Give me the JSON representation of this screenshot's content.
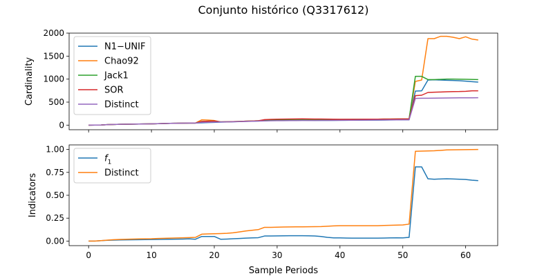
{
  "figure": {
    "title": "Conjunto histórico (Q3317612)",
    "xlabel": "Sample Periods"
  },
  "chart_data": [
    {
      "type": "line",
      "ylabel": "Cardinality",
      "xlim": [
        -3.1,
        65.1
      ],
      "ylim": [
        -100,
        2000
      ],
      "xticks": [
        0,
        10,
        20,
        30,
        40,
        50,
        60
      ],
      "yticks": [
        0,
        500,
        1000,
        1500,
        2000
      ],
      "legend_position": "upper left",
      "x": [
        0,
        1,
        2,
        3,
        4,
        5,
        6,
        7,
        8,
        9,
        10,
        11,
        12,
        13,
        14,
        15,
        16,
        17,
        18,
        19,
        20,
        21,
        22,
        23,
        24,
        25,
        26,
        27,
        28,
        29,
        30,
        31,
        32,
        33,
        34,
        35,
        36,
        37,
        38,
        39,
        40,
        41,
        42,
        43,
        44,
        45,
        46,
        47,
        48,
        49,
        50,
        51,
        52,
        53,
        54,
        55,
        56,
        57,
        58,
        59,
        60,
        61,
        62
      ],
      "series": [
        {
          "name": "N1−UNIF",
          "color": "#1f77b4",
          "values": [
            0,
            2,
            4,
            10,
            15,
            18,
            20,
            22,
            24,
            26,
            28,
            32,
            35,
            38,
            40,
            42,
            45,
            45,
            50,
            55,
            60,
            65,
            68,
            72,
            78,
            82,
            86,
            90,
            95,
            100,
            100,
            102,
            104,
            105,
            106,
            104,
            103,
            102,
            102,
            103,
            104,
            105,
            106,
            107,
            108,
            108,
            109,
            110,
            112,
            114,
            115,
            116,
            740,
            745,
            980,
            985,
            980,
            975,
            970,
            965,
            955,
            945,
            935
          ]
        },
        {
          "name": "Chao92",
          "color": "#ff7f0e",
          "values": [
            0,
            2,
            4,
            10,
            15,
            18,
            20,
            22,
            24,
            26,
            28,
            32,
            35,
            38,
            40,
            42,
            45,
            45,
            115,
            110,
            100,
            70,
            72,
            76,
            80,
            86,
            90,
            95,
            100,
            110,
            115,
            118,
            122,
            125,
            126,
            124,
            123,
            122,
            122,
            123,
            124,
            125,
            126,
            127,
            128,
            128,
            129,
            130,
            131,
            133,
            134,
            135,
            950,
            980,
            1880,
            1880,
            1930,
            1930,
            1910,
            1880,
            1920,
            1870,
            1850
          ]
        },
        {
          "name": "Jack1",
          "color": "#2ca02c",
          "values": [
            0,
            2,
            4,
            10,
            15,
            18,
            20,
            22,
            24,
            26,
            28,
            32,
            35,
            38,
            40,
            42,
            45,
            45,
            80,
            85,
            90,
            70,
            72,
            76,
            80,
            86,
            90,
            95,
            100,
            110,
            115,
            118,
            122,
            125,
            126,
            124,
            123,
            122,
            122,
            123,
            124,
            125,
            126,
            127,
            128,
            128,
            129,
            130,
            131,
            133,
            134,
            135,
            1060,
            1060,
            990,
            990,
            995,
            1000,
            1000,
            998,
            996,
            994,
            990
          ]
        },
        {
          "name": "SOR",
          "color": "#d62728",
          "values": [
            0,
            2,
            4,
            10,
            15,
            18,
            20,
            22,
            24,
            26,
            28,
            32,
            35,
            38,
            40,
            42,
            45,
            45,
            80,
            85,
            90,
            70,
            72,
            76,
            80,
            86,
            90,
            95,
            120,
            125,
            128,
            130,
            132,
            135,
            136,
            134,
            133,
            132,
            130,
            128,
            127,
            126,
            126,
            127,
            128,
            128,
            129,
            130,
            131,
            133,
            134,
            135,
            640,
            650,
            710,
            715,
            720,
            725,
            728,
            730,
            735,
            745,
            745
          ]
        },
        {
          "name": "Distinct",
          "color": "#9467bd",
          "values": [
            0,
            2,
            4,
            10,
            15,
            18,
            20,
            22,
            24,
            26,
            28,
            32,
            35,
            38,
            40,
            42,
            45,
            45,
            60,
            62,
            65,
            68,
            70,
            72,
            76,
            80,
            84,
            88,
            92,
            95,
            96,
            97,
            98,
            99,
            100,
            100,
            101,
            102,
            103,
            104,
            105,
            106,
            107,
            108,
            109,
            110,
            111,
            112,
            113,
            114,
            115,
            116,
            580,
            585,
            585,
            587,
            588,
            590,
            592,
            593,
            594,
            594,
            595
          ]
        }
      ]
    },
    {
      "type": "line",
      "ylabel": "Indicators",
      "xlim": [
        -3.1,
        65.1
      ],
      "ylim": [
        -0.05,
        1.05
      ],
      "xticks": [
        0,
        10,
        20,
        30,
        40,
        50,
        60
      ],
      "yticks": [
        "0.00",
        "0.25",
        "0.50",
        "0.75",
        "1.00"
      ],
      "legend_position": "upper left",
      "x": [
        0,
        1,
        2,
        3,
        4,
        5,
        6,
        7,
        8,
        9,
        10,
        11,
        12,
        13,
        14,
        15,
        16,
        17,
        18,
        19,
        20,
        21,
        22,
        23,
        24,
        25,
        26,
        27,
        28,
        29,
        30,
        31,
        32,
        33,
        34,
        35,
        36,
        37,
        38,
        39,
        40,
        41,
        42,
        43,
        44,
        45,
        46,
        47,
        48,
        49,
        50,
        51,
        52,
        53,
        54,
        55,
        56,
        57,
        58,
        59,
        60,
        61,
        62
      ],
      "series": [
        {
          "name": "f1",
          "color": "#1f77b4",
          "values": [
            0.0,
            0.0,
            0.005,
            0.008,
            0.01,
            0.012,
            0.013,
            0.014,
            0.015,
            0.016,
            0.017,
            0.018,
            0.019,
            0.02,
            0.021,
            0.022,
            0.024,
            0.02,
            0.05,
            0.05,
            0.05,
            0.02,
            0.022,
            0.025,
            0.028,
            0.032,
            0.035,
            0.037,
            0.055,
            0.055,
            0.056,
            0.057,
            0.058,
            0.058,
            0.058,
            0.057,
            0.055,
            0.05,
            0.04,
            0.035,
            0.035,
            0.033,
            0.032,
            0.032,
            0.032,
            0.032,
            0.032,
            0.033,
            0.035,
            0.036,
            0.035,
            0.04,
            0.81,
            0.81,
            0.68,
            0.675,
            0.678,
            0.68,
            0.678,
            0.675,
            0.672,
            0.665,
            0.66
          ]
        },
        {
          "name": "Distinct",
          "color": "#ff7f0e",
          "values": [
            0.0,
            0.0,
            0.005,
            0.01,
            0.015,
            0.018,
            0.02,
            0.022,
            0.023,
            0.024,
            0.025,
            0.028,
            0.03,
            0.032,
            0.034,
            0.036,
            0.038,
            0.04,
            0.075,
            0.078,
            0.08,
            0.082,
            0.085,
            0.09,
            0.1,
            0.11,
            0.118,
            0.125,
            0.15,
            0.15,
            0.152,
            0.153,
            0.154,
            0.155,
            0.155,
            0.156,
            0.157,
            0.158,
            0.162,
            0.166,
            0.168,
            0.168,
            0.168,
            0.168,
            0.168,
            0.168,
            0.168,
            0.17,
            0.172,
            0.174,
            0.176,
            0.185,
            0.98,
            0.982,
            0.984,
            0.986,
            0.99,
            0.995,
            0.996,
            0.997,
            0.998,
            0.999,
            1.0
          ]
        }
      ]
    }
  ]
}
